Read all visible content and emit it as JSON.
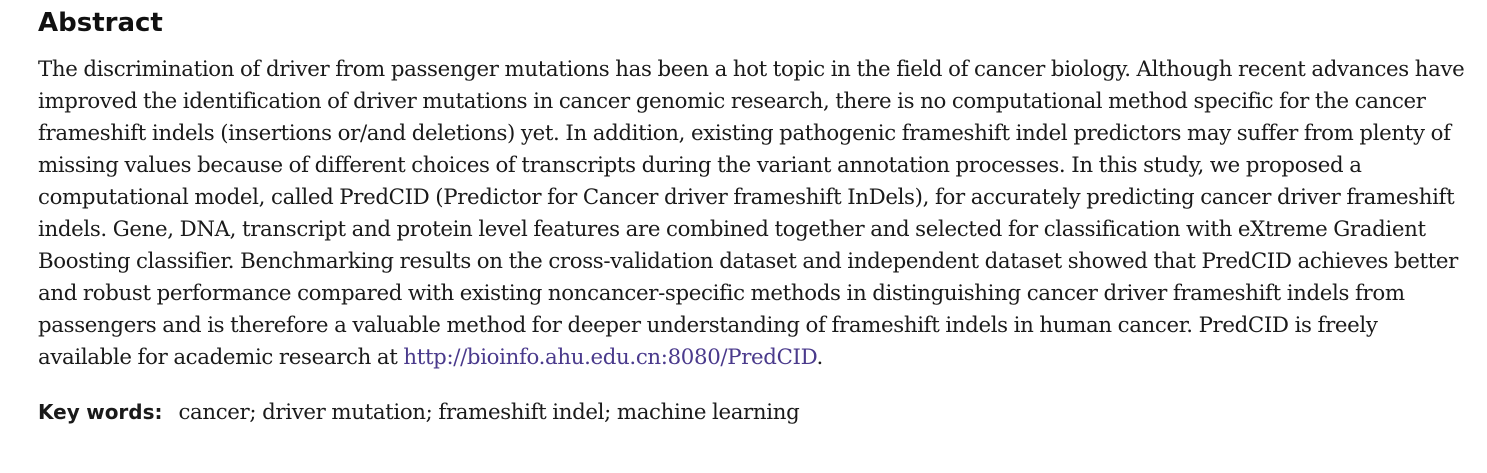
{
  "section": {
    "heading": "Abstract"
  },
  "abstract": {
    "text_before_link": "The discrimination of driver from passenger mutations has been a hot topic in the field of cancer biology. Although recent advances have improved the identification of driver mutations in cancer genomic research, there is no computational method specific for the cancer frameshift indels (insertions or/and deletions) yet. In addition, existing pathogenic frameshift indel predictors may suffer from plenty of missing values because of different choices of transcripts during the variant annotation processes. In this study, we proposed a computational model, called PredCID (Predictor for Cancer driver frameshift InDels), for accurately predicting cancer driver frameshift indels. Gene, DNA, transcript and protein level features are combined together and selected for classification with eXtreme Gradient Boosting classifier. Benchmarking results on the cross-validation dataset and independent dataset showed that PredCID achieves better and robust performance compared with existing noncancer-specific methods in distinguishing cancer driver frameshift indels from passengers and is therefore a valuable method for deeper understanding of frameshift indels in human cancer. PredCID is freely available for academic research at ",
    "link_text": "http://bioinfo.ahu.edu.cn:8080/PredCID",
    "text_after_link": ".",
    "link_color": "#4a3a8c"
  },
  "keywords": {
    "label": "Key words:",
    "value": "cancer; driver mutation; frameshift indel; machine learning"
  }
}
